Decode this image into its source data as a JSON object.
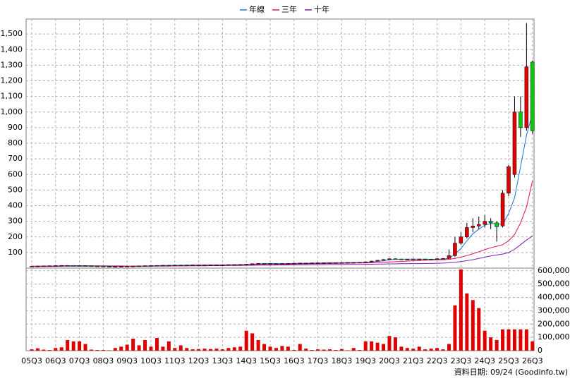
{
  "chart_data": {
    "type": "candlestick",
    "categories": [
      "05Q3",
      null,
      null,
      null,
      "06Q3",
      null,
      null,
      null,
      "07Q3",
      null,
      null,
      null,
      "08Q3",
      null,
      null,
      null,
      "09Q3",
      null,
      null,
      null,
      "10Q3",
      null,
      null,
      null,
      "11Q3",
      null,
      null,
      null,
      "12Q3",
      null,
      null,
      null,
      "13Q3",
      null,
      null,
      null,
      "14Q3",
      null,
      null,
      null,
      "15Q3",
      null,
      null,
      null,
      "16Q3",
      null,
      null,
      null,
      "17Q3",
      null,
      null,
      null,
      "18Q3",
      null,
      null,
      null,
      "19Q3",
      null,
      null,
      null,
      "20Q3",
      null,
      null,
      null,
      "21Q3",
      null,
      null,
      null,
      "22Q3",
      null,
      null,
      null,
      "23Q3",
      null,
      null,
      null,
      "24Q3",
      null,
      null,
      null,
      "25Q3",
      null,
      null,
      null,
      "26Q3"
    ],
    "open": [
      12,
      12,
      13,
      14,
      15,
      16,
      17,
      17,
      16,
      15,
      14,
      13,
      12,
      11,
      10,
      10,
      11,
      12,
      13,
      14,
      15,
      16,
      17,
      18,
      18,
      19,
      19,
      19,
      20,
      20,
      20,
      21,
      21,
      21,
      22,
      22,
      23,
      25,
      28,
      30,
      29,
      28,
      28,
      29,
      30,
      31,
      32,
      32,
      33,
      33,
      34,
      34,
      35,
      35,
      36,
      36,
      37,
      40,
      45,
      50,
      55,
      60,
      58,
      56,
      57,
      58,
      58,
      57,
      56,
      60,
      62,
      80,
      160,
      200,
      260,
      270,
      280,
      300,
      290,
      270,
      480,
      600,
      1000,
      900,
      1320
    ],
    "high": [
      14,
      15,
      16,
      17,
      18,
      19,
      19,
      19,
      18,
      17,
      16,
      15,
      14,
      13,
      12,
      13,
      14,
      15,
      16,
      17,
      18,
      19,
      20,
      20,
      21,
      21,
      21,
      22,
      22,
      22,
      23,
      23,
      23,
      24,
      24,
      25,
      27,
      30,
      32,
      32,
      31,
      30,
      31,
      32,
      33,
      34,
      34,
      35,
      35,
      36,
      36,
      37,
      37,
      38,
      38,
      39,
      42,
      47,
      52,
      57,
      62,
      62,
      60,
      59,
      60,
      60,
      60,
      59,
      63,
      65,
      120,
      200,
      230,
      290,
      320,
      330,
      340,
      320,
      300,
      500,
      660,
      1100,
      1100,
      1570,
      1330
    ],
    "low": [
      10,
      10,
      11,
      12,
      13,
      14,
      15,
      14,
      13,
      12,
      11,
      10,
      9,
      8,
      8,
      8,
      9,
      10,
      11,
      12,
      13,
      14,
      15,
      16,
      16,
      17,
      17,
      17,
      18,
      18,
      18,
      19,
      19,
      19,
      20,
      20,
      21,
      23,
      26,
      27,
      26,
      26,
      26,
      27,
      28,
      29,
      30,
      30,
      31,
      31,
      32,
      32,
      33,
      33,
      34,
      34,
      35,
      38,
      43,
      48,
      53,
      56,
      54,
      54,
      55,
      56,
      55,
      54,
      56,
      58,
      60,
      70,
      150,
      190,
      230,
      250,
      260,
      250,
      170,
      260,
      460,
      580,
      840,
      880,
      860
    ],
    "close": [
      12,
      13,
      14,
      15,
      16,
      17,
      17,
      16,
      15,
      14,
      13,
      12,
      11,
      10,
      10,
      11,
      12,
      13,
      14,
      15,
      16,
      17,
      18,
      18,
      19,
      19,
      19,
      20,
      20,
      20,
      21,
      21,
      21,
      22,
      22,
      23,
      25,
      28,
      30,
      29,
      28,
      28,
      29,
      30,
      31,
      32,
      32,
      33,
      33,
      34,
      34,
      35,
      35,
      36,
      36,
      37,
      40,
      45,
      50,
      55,
      60,
      58,
      56,
      57,
      58,
      58,
      57,
      56,
      60,
      62,
      80,
      160,
      200,
      260,
      270,
      280,
      300,
      290,
      265,
      480,
      650,
      1000,
      900,
      1290,
      880
    ],
    "up_color": "#e00000",
    "down_color": "#00cc00",
    "series": [
      {
        "name": "年線",
        "color": "#1e6fd0",
        "values": [
          11,
          12,
          13,
          13,
          14,
          15,
          16,
          16,
          16,
          16,
          15,
          14,
          13,
          12,
          11,
          11,
          11,
          12,
          13,
          14,
          15,
          16,
          17,
          17,
          18,
          18,
          19,
          19,
          19,
          20,
          20,
          20,
          21,
          21,
          22,
          22,
          23,
          25,
          27,
          28,
          29,
          29,
          29,
          29,
          30,
          31,
          31,
          32,
          33,
          33,
          34,
          34,
          35,
          35,
          36,
          36,
          37,
          39,
          43,
          47,
          53,
          56,
          57,
          58,
          58,
          58,
          57,
          57,
          57,
          58,
          62,
          90,
          125,
          175,
          220,
          250,
          275,
          285,
          285,
          280,
          350,
          450,
          650,
          850,
          990
        ]
      },
      {
        "name": "三年",
        "color": "#e0105a",
        "values": [
          12,
          12,
          13,
          13,
          13,
          14,
          14,
          14,
          15,
          15,
          15,
          15,
          15,
          14,
          14,
          14,
          13,
          13,
          13,
          13,
          13,
          14,
          14,
          15,
          15,
          16,
          16,
          17,
          17,
          18,
          18,
          19,
          19,
          19,
          20,
          20,
          21,
          21,
          22,
          23,
          23,
          24,
          25,
          25,
          26,
          27,
          27,
          28,
          28,
          29,
          30,
          30,
          31,
          31,
          32,
          33,
          33,
          34,
          35,
          37,
          39,
          41,
          43,
          45,
          47,
          49,
          51,
          52,
          53,
          54,
          56,
          62,
          70,
          80,
          92,
          105,
          118,
          130,
          140,
          150,
          175,
          215,
          290,
          390,
          560
        ]
      },
      {
        "name": "十年",
        "color": "#7a1fb8",
        "values": [
          10,
          10,
          11,
          11,
          11,
          12,
          12,
          12,
          12,
          12,
          12,
          12,
          12,
          12,
          11,
          11,
          11,
          11,
          12,
          12,
          12,
          13,
          13,
          13,
          14,
          14,
          14,
          15,
          15,
          15,
          16,
          16,
          16,
          17,
          17,
          17,
          18,
          18,
          19,
          19,
          19,
          20,
          20,
          20,
          21,
          21,
          21,
          22,
          22,
          22,
          23,
          23,
          23,
          24,
          24,
          24,
          25,
          25,
          26,
          26,
          27,
          27,
          28,
          28,
          29,
          29,
          30,
          30,
          31,
          32,
          34,
          38,
          42,
          48,
          54,
          62,
          70,
          78,
          84,
          90,
          100,
          120,
          150,
          180,
          205
        ]
      }
    ],
    "ylim": [
      0,
      1600
    ],
    "yticks": [
      100,
      200,
      300,
      400,
      500,
      600,
      700,
      800,
      900,
      {
        "value": 1000,
        "label": "1,000"
      },
      {
        "value": 1100,
        "label": "1,100"
      },
      {
        "value": 1200,
        "label": "1,200"
      },
      {
        "value": 1300,
        "label": "1,300"
      },
      {
        "value": 1400,
        "label": "1,400"
      },
      {
        "value": 1500,
        "label": "1,500"
      }
    ],
    "volume": {
      "color": "#e00000",
      "values": [
        10000,
        18000,
        8000,
        5000,
        20000,
        25000,
        80000,
        70000,
        70000,
        50000,
        8000,
        5000,
        5000,
        3000,
        20000,
        30000,
        45000,
        90000,
        40000,
        80000,
        30000,
        95000,
        30000,
        70000,
        20000,
        40000,
        20000,
        10000,
        12000,
        15000,
        12000,
        15000,
        10000,
        20000,
        25000,
        30000,
        150000,
        130000,
        80000,
        50000,
        30000,
        20000,
        35000,
        30000,
        5000,
        50000,
        15000,
        5000,
        10000,
        8000,
        10000,
        5000,
        12000,
        3000,
        20000,
        5000,
        70000,
        70000,
        60000,
        50000,
        110000,
        100000,
        30000,
        20000,
        15000,
        30000,
        10000,
        15000,
        20000,
        10000,
        50000,
        340000,
        610000,
        430000,
        380000,
        320000,
        150000,
        100000,
        80000,
        160000,
        160000,
        160000,
        160000,
        160000,
        70000
      ],
      "ylim": [
        0,
        620000
      ],
      "yticks": [
        0,
        {
          "value": 100000,
          "label": "100,000"
        },
        {
          "value": 200000,
          "label": "200,000"
        },
        {
          "value": 300000,
          "label": "300,000"
        },
        {
          "value": 400000,
          "label": "400,000"
        },
        {
          "value": 500000,
          "label": "500,000"
        },
        {
          "value": 600000,
          "label": "600,000"
        }
      ]
    },
    "grid": true,
    "legend": "top",
    "footnote": "資料日期: 09/24  (Goodinfo.tw)"
  }
}
